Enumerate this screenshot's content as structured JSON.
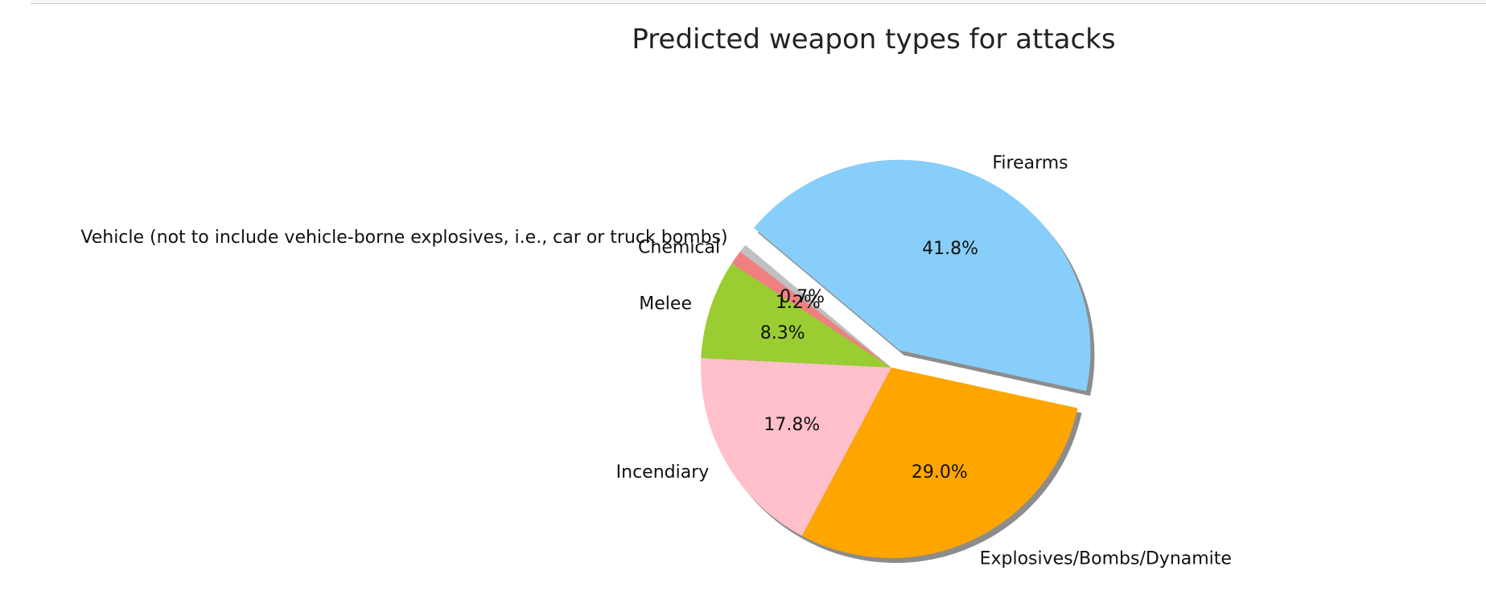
{
  "chart_data": {
    "type": "pie",
    "title": "Predicted weapon types for attacks",
    "slices": [
      {
        "label": "Firearms",
        "pct_label": "41.8%",
        "value": 41.8,
        "color": "#87cefa",
        "explode": true
      },
      {
        "label": "Explosives/Bombs/Dynamite",
        "pct_label": "29.0%",
        "value": 29.0,
        "color": "#ffa500",
        "explode": false
      },
      {
        "label": "Incendiary",
        "pct_label": "17.8%",
        "value": 17.8,
        "color": "#ffc0cb",
        "explode": false
      },
      {
        "label": "Melee",
        "pct_label": "8.3%",
        "value": 8.3,
        "color": "#9acd32",
        "explode": false
      },
      {
        "label": "Chemical",
        "pct_label": "1.2%",
        "value": 1.2,
        "color": "#f08080",
        "explode": false
      },
      {
        "label": "Vehicle (not to include vehicle-borne explosives, i.e., car or truck bombs)",
        "pct_label": "0.7%",
        "value": 0.7,
        "color": "#c0c0c0",
        "explode": false
      }
    ],
    "start_angle_deg": 140,
    "direction": "clockwise",
    "shadow": true,
    "legend": "none"
  }
}
